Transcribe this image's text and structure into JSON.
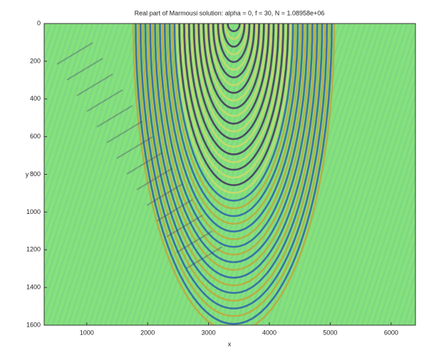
{
  "chart_data": {
    "type": "heatmap",
    "title": "Real part of Marmousi solution: alpha = 0, f = 30, N = 1.08958e+06",
    "x_label": "x",
    "y_label": "y",
    "xlim": [
      300,
      6400
    ],
    "xticks": [
      1000,
      2000,
      3000,
      4000,
      5000,
      6000
    ],
    "ylim": [
      0,
      1600
    ],
    "yticks": [
      0,
      200,
      400,
      600,
      800,
      1000,
      1200,
      1400,
      1600
    ],
    "y_reversed": true
  }
}
